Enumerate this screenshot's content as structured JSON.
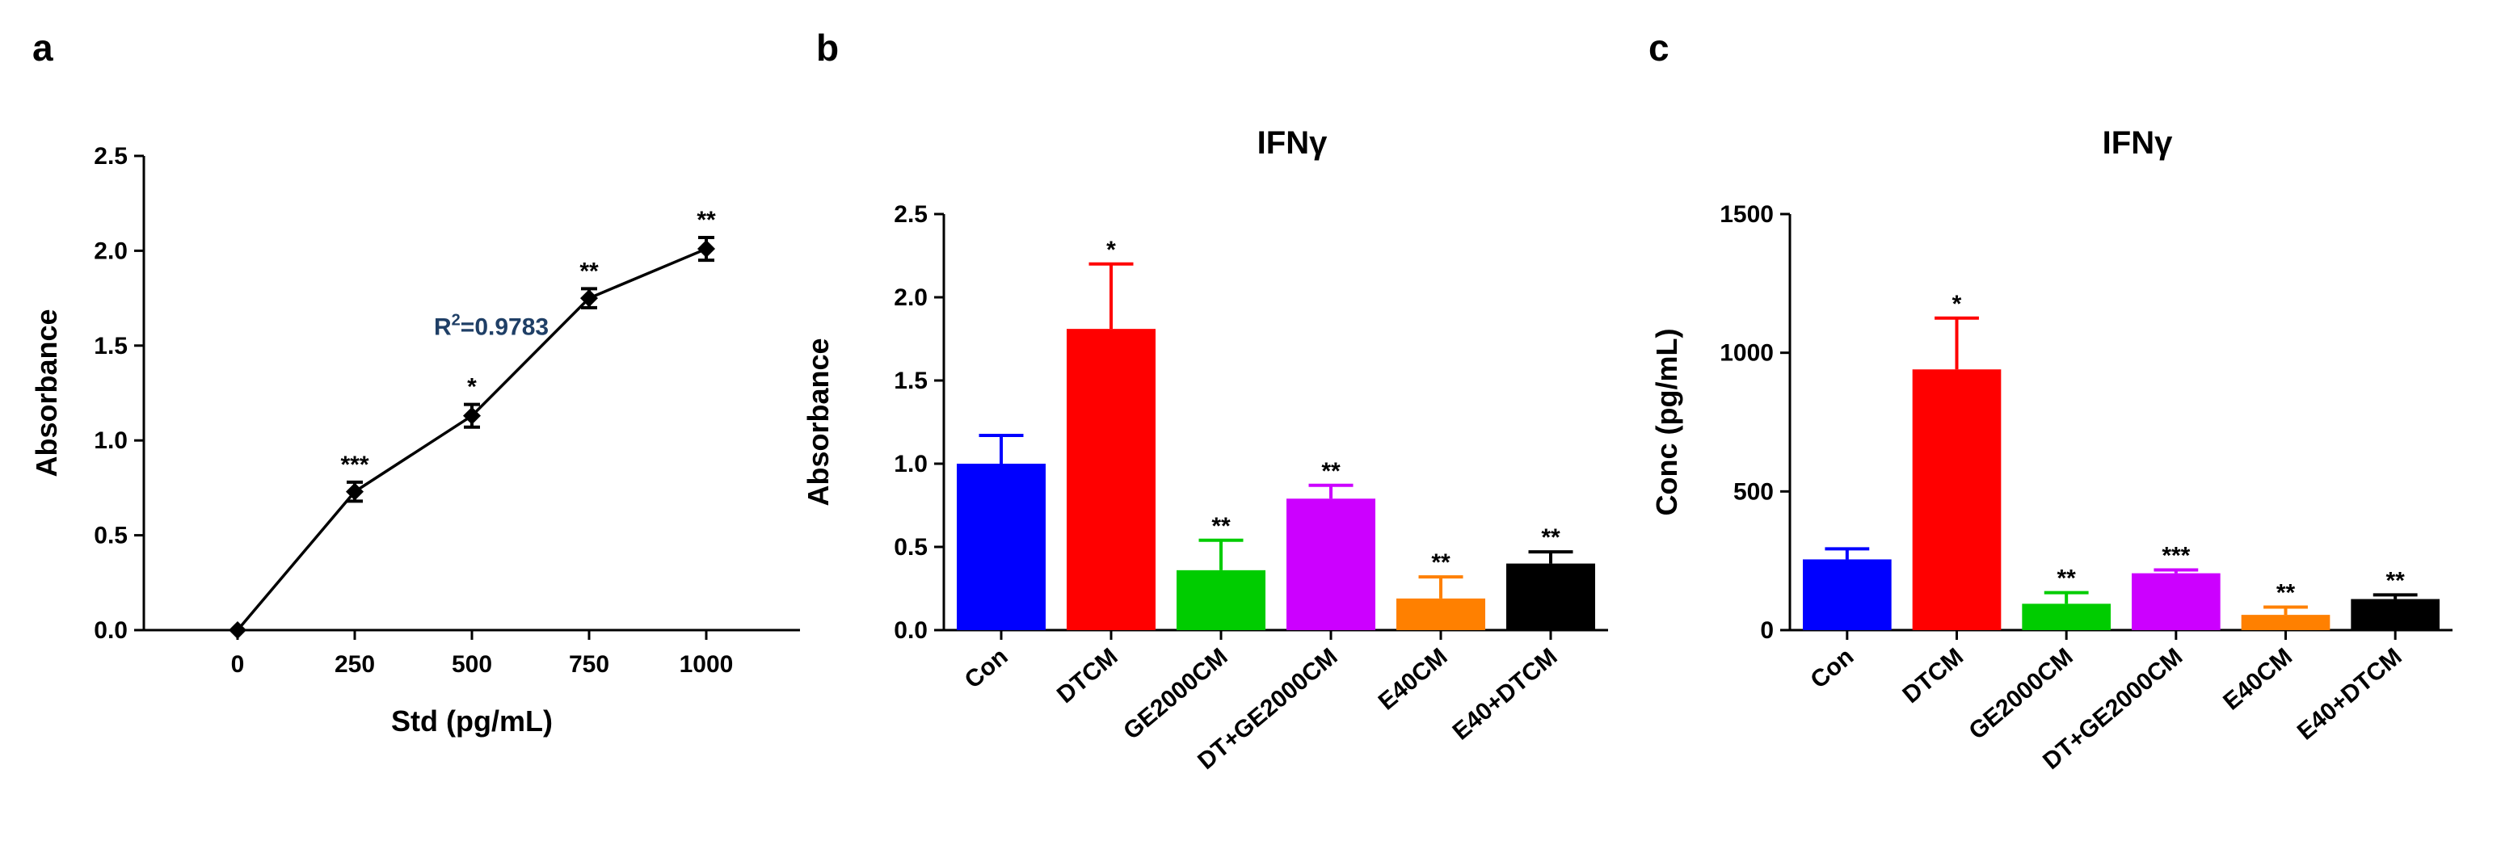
{
  "panels": [
    "a",
    "b",
    "c"
  ],
  "chart_data": [
    {
      "type": "line",
      "panel": "a",
      "title": "",
      "xlabel": "Std (pg/mL)",
      "ylabel": "Absorbance",
      "xlim": [
        -200,
        1200
      ],
      "ylim": [
        0,
        2.5
      ],
      "xticks": [
        "0",
        "250",
        "500",
        "750",
        "1000"
      ],
      "yticks": [
        "0.0",
        "0.5",
        "1.0",
        "1.5",
        "2.0",
        "2.5"
      ],
      "series": [
        {
          "x": [
            0,
            250,
            500,
            750,
            1000
          ],
          "y": [
            0.0,
            0.73,
            1.13,
            1.75,
            2.01
          ],
          "error": [
            0.0,
            0.05,
            0.06,
            0.05,
            0.06
          ],
          "significance": [
            "",
            "***",
            "*",
            "**",
            "**"
          ],
          "color": "#000000"
        }
      ],
      "annotations": [
        {
          "text": "R",
          "superscript": "2",
          "suffix": "=0.9783",
          "x": 500,
          "y": 1.65
        }
      ],
      "grid": false
    },
    {
      "type": "bar",
      "panel": "b",
      "title": "IFNγ",
      "xlabel": "",
      "ylabel": "Absorbance",
      "ylim": [
        0,
        2.5
      ],
      "yticks": [
        "0.0",
        "0.5",
        "1.0",
        "1.5",
        "2.0",
        "2.5"
      ],
      "categories": [
        "Con",
        "DTCM",
        "GE2000CM",
        "DT+GE2000CM",
        "E40CM",
        "E40+DTCM"
      ],
      "values": [
        1.0,
        1.81,
        0.36,
        0.79,
        0.19,
        0.4
      ],
      "errors": [
        0.17,
        0.39,
        0.18,
        0.08,
        0.13,
        0.07
      ],
      "significance": [
        "",
        "*",
        "**",
        "**",
        "**",
        "**"
      ],
      "colors": [
        "#0000ff",
        "#ff0000",
        "#00cc00",
        "#cc00ff",
        "#ff8000",
        "#000000"
      ],
      "grid": false
    },
    {
      "type": "bar",
      "panel": "c",
      "title": "IFNγ",
      "xlabel": "",
      "ylabel": "Conc (pg/mL)",
      "ylim": [
        0,
        1500
      ],
      "yticks": [
        "0",
        "500",
        "1000",
        "1500"
      ],
      "categories": [
        "Con",
        "DTCM",
        "GE2000CM",
        "DT+GE2000CM",
        "E40CM",
        "E40+DTCM"
      ],
      "values": [
        255,
        940,
        95,
        205,
        55,
        112
      ],
      "errors": [
        38,
        185,
        40,
        12,
        28,
        15
      ],
      "significance": [
        "",
        "*",
        "**",
        "***",
        "**",
        "**"
      ],
      "colors": [
        "#0000ff",
        "#ff0000",
        "#00cc00",
        "#cc00ff",
        "#ff8000",
        "#000000"
      ],
      "grid": false
    }
  ]
}
